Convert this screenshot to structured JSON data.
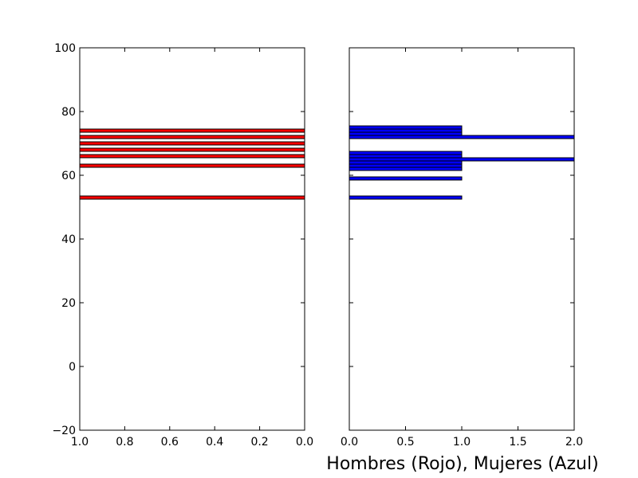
{
  "chart_data": {
    "type": "bar",
    "orientation": "horizontal",
    "xlabel": "Hombres (Rojo), Mujeres (Azul)",
    "ylim": [
      -20,
      100
    ],
    "yticks": [
      "100",
      "80",
      "60",
      "40",
      "20",
      "0",
      "−20"
    ],
    "bar_height": 1,
    "panels": [
      {
        "name": "Hombres",
        "color": "#ff0000",
        "xlim": [
          1.0,
          0.0
        ],
        "x_inverted": true,
        "xticks": [
          "1.0",
          "0.8",
          "0.6",
          "0.4",
          "0.2",
          "0.0"
        ],
        "bars": [
          {
            "y": 53,
            "value": 1
          },
          {
            "y": 63,
            "value": 1
          },
          {
            "y": 66,
            "value": 1
          },
          {
            "y": 68,
            "value": 1
          },
          {
            "y": 70,
            "value": 1
          },
          {
            "y": 72,
            "value": 1
          },
          {
            "y": 74,
            "value": 1
          }
        ]
      },
      {
        "name": "Mujeres",
        "color": "#0000ff",
        "xlim": [
          0.0,
          2.0
        ],
        "x_inverted": false,
        "xticks": [
          "0.0",
          "0.5",
          "1.0",
          "1.5",
          "2.0"
        ],
        "bars": [
          {
            "y": 53,
            "value": 1
          },
          {
            "y": 59,
            "value": 1
          },
          {
            "y": 62,
            "value": 1
          },
          {
            "y": 63,
            "value": 1
          },
          {
            "y": 64,
            "value": 1
          },
          {
            "y": 65,
            "value": 2
          },
          {
            "y": 66,
            "value": 1
          },
          {
            "y": 67,
            "value": 1
          },
          {
            "y": 72,
            "value": 2
          },
          {
            "y": 73,
            "value": 1
          },
          {
            "y": 74,
            "value": 1
          },
          {
            "y": 75,
            "value": 1
          }
        ]
      }
    ]
  }
}
